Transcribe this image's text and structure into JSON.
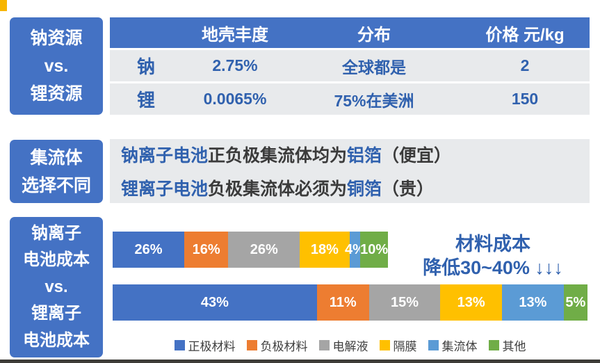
{
  "palette": {
    "panel_blue": "#4472C4",
    "text_blue": "#3061AE",
    "panel_gray": "#E8EAEC",
    "accent_yellow": "#F7B500"
  },
  "left_panels": {
    "resources": {
      "l1": "钠资源",
      "l2": "vs.",
      "l3": "锂资源"
    },
    "collector": {
      "l1": "集流体",
      "l2": "选择不同"
    },
    "cost": {
      "l1": "钠离子",
      "l2": "电池成本",
      "l3": "vs.",
      "l4": "锂离子",
      "l5": "电池成本"
    }
  },
  "table": {
    "headers": [
      "",
      "地壳丰度",
      "分布",
      "价格 元/kg"
    ],
    "rows": [
      [
        "钠",
        "2.75%",
        "全球都是",
        "2"
      ],
      [
        "锂",
        "0.0065%",
        "75%在美洲",
        "150"
      ]
    ]
  },
  "collector": {
    "line1": {
      "p1": "钠离子电池",
      "p2": "正负极集流体均为",
      "p3": "铝箔",
      "p4": "（便宜）"
    },
    "line2": {
      "p1": "锂离子电池",
      "p2": "负极集流体必须为",
      "p3": "铜箔",
      "p4": "（贵）"
    }
  },
  "chart_data": {
    "type": "bar",
    "subtype": "horizontal-stacked",
    "title": "钠离子电池成本 vs. 锂离子电池成本",
    "unit": "%",
    "series_labels": [
      "正极材料",
      "负极材料",
      "电解液",
      "隔膜",
      "集流体",
      "其他"
    ],
    "colors": [
      "#4472C4",
      "#ED7D31",
      "#A5A5A5",
      "#FFC000",
      "#5B9BD5",
      "#70AD47"
    ],
    "bars": [
      {
        "name": "钠离子电池",
        "values": [
          26,
          16,
          26,
          18,
          4,
          10
        ],
        "labels": [
          "26%",
          "16%",
          "26%",
          "18%",
          "4%",
          "10%"
        ],
        "relative_total_width_pct": 58
      },
      {
        "name": "锂离子电池",
        "values": [
          43,
          11,
          15,
          13,
          13,
          5
        ],
        "labels": [
          "43%",
          "11%",
          "15%",
          "13%",
          "13%",
          "5%"
        ],
        "relative_total_width_pct": 100
      }
    ],
    "annotation_line1": "材料成本",
    "annotation_line2": "降低30~40% ↓↓↓",
    "legend": [
      "正极材料",
      "负极材料",
      "电解液",
      "隔膜",
      "集流体",
      "其他"
    ]
  }
}
